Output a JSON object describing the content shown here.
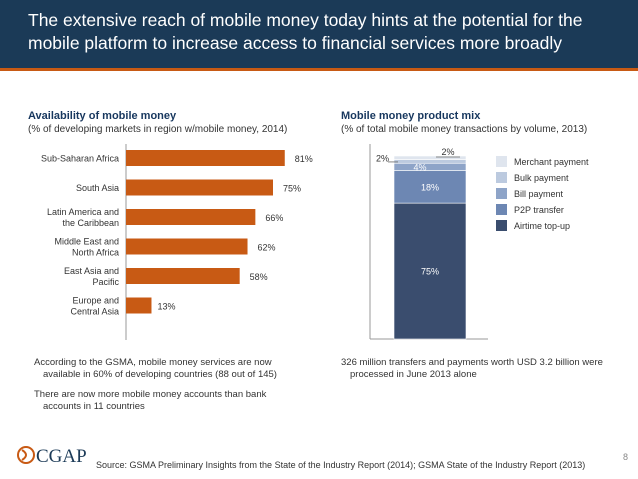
{
  "header": {
    "title": "The extensive reach of mobile money today hints at the potential for the mobile platform to increase access to financial services more broadly"
  },
  "left": {
    "title": "Availability of mobile money",
    "subtitle": "(% of developing markets in region w/mobile money, 2014)",
    "bullets": [
      "According to the GSMA, mobile money services are now available in 60% of developing countries (88 out of 145)",
      "There are now more mobile money accounts than bank accounts in 11 countries"
    ]
  },
  "right": {
    "title": "Mobile money product mix",
    "subtitle": "(% of total mobile money transactions by volume, 2013)",
    "bullets": [
      "326 million transfers and payments worth USD 3.2 billion were processed in June 2013 alone"
    ]
  },
  "footer": {
    "source": "Source: GSMA Preliminary Insights from the State of the Industry Report (2014); GSMA State of the Industry Report (2013)",
    "page": "8",
    "logo_text": "CGAP"
  },
  "colors": {
    "header_bg": "#1b3a57",
    "accent": "#c85a14",
    "bar": "#c85a14",
    "stack": [
      "#3a4d6e",
      "#6d87b3",
      "#8ea4c8",
      "#bccadf",
      "#dfe5ee"
    ]
  },
  "chart_data": [
    {
      "type": "bar",
      "orientation": "horizontal",
      "categories": [
        "Sub-Saharan Africa",
        "South Asia",
        "Latin America and the Caribbean",
        "Middle East and North Africa",
        "East Asia and Pacific",
        "Europe and Central Asia"
      ],
      "category_lines": [
        [
          "Sub-Saharan Africa"
        ],
        [
          "South Asia"
        ],
        [
          "Latin America and",
          "the Caribbean"
        ],
        [
          "Middle East and",
          "North Africa"
        ],
        [
          "East Asia and",
          "Pacific"
        ],
        [
          "Europe and",
          "Central Asia"
        ]
      ],
      "values": [
        81,
        75,
        66,
        62,
        58,
        13
      ],
      "labels": [
        "81%",
        "75%",
        "66%",
        "62%",
        "58%",
        "13%"
      ],
      "xlim": [
        0,
        100
      ]
    },
    {
      "type": "bar",
      "stacked": true,
      "series": [
        {
          "name": "Airtime top-up",
          "value": 75,
          "label": "75%"
        },
        {
          "name": "P2P transfer",
          "value": 18,
          "label": "18%"
        },
        {
          "name": "Bill payment",
          "value": 4,
          "label": "4%"
        },
        {
          "name": "Bulk payment",
          "value": 2,
          "label": "2%"
        },
        {
          "name": "Merchant payment",
          "value": 2,
          "label": "2%"
        }
      ],
      "legend_order": [
        "Merchant payment",
        "Bulk payment",
        "Bill payment",
        "P2P transfer",
        "Airtime top-up"
      ],
      "ylim": [
        0,
        101
      ]
    }
  ]
}
